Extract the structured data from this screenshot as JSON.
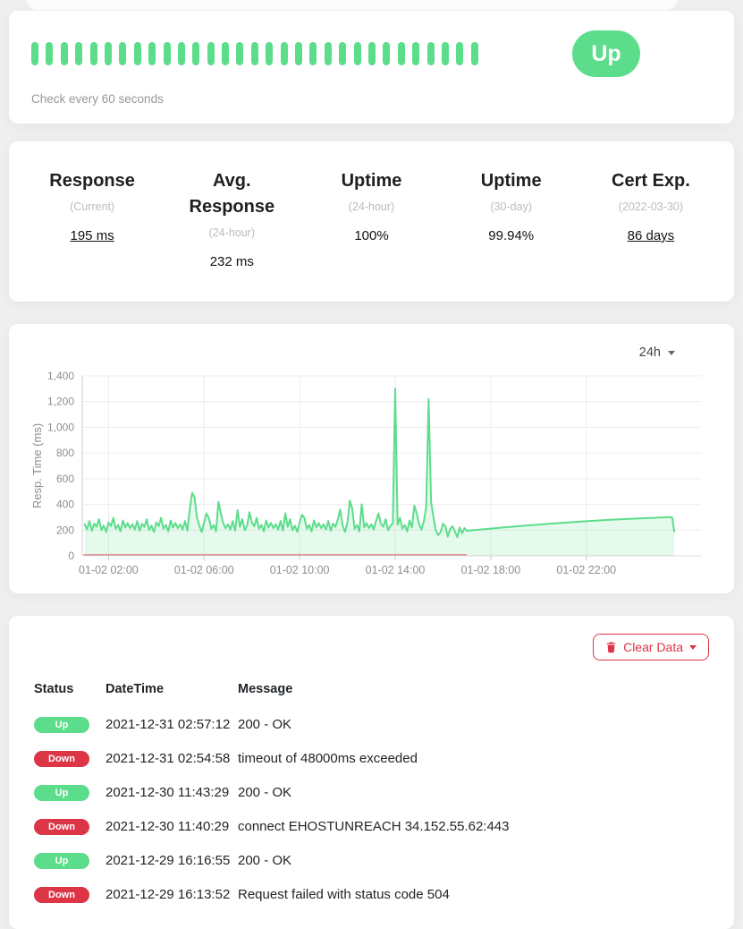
{
  "page": {
    "background": "#efefef"
  },
  "colors": {
    "green": "#5cdd8b",
    "red": "#dc3545"
  },
  "monitor": {
    "beats_count": 31,
    "beat_color": "#5cdd8b",
    "status_label": "Up",
    "check_text": "Check every 60 seconds"
  },
  "stats": [
    {
      "title": "Response",
      "subtitle": "(Current)",
      "value": "195 ms",
      "underlined": true
    },
    {
      "title": "Avg. Response",
      "subtitle": "(24-hour)",
      "value": "232 ms",
      "underlined": false
    },
    {
      "title": "Uptime",
      "subtitle": "(24-hour)",
      "value": "100%",
      "underlined": false
    },
    {
      "title": "Uptime",
      "subtitle": "(30-day)",
      "value": "99.94%",
      "underlined": false
    },
    {
      "title": "Cert Exp.",
      "subtitle": "(2022-03-30)",
      "value": "86 days",
      "underlined": true
    }
  ],
  "chart": {
    "period_label": "24h"
  },
  "chart_data": {
    "type": "area",
    "title": "",
    "xlabel": "",
    "ylabel": "Resp. Time (ms)",
    "ylim": [
      0,
      1400
    ],
    "ytick_step": 200,
    "x_range_hours": [
      0.9,
      26.8
    ],
    "grid": true,
    "legend": false,
    "xticks": [
      {
        "hour": 2,
        "label": "01-02 02:00"
      },
      {
        "hour": 6,
        "label": "01-02 06:00"
      },
      {
        "hour": 10,
        "label": "01-02 10:00"
      },
      {
        "hour": 14,
        "label": "01-02 14:00"
      },
      {
        "hour": 18,
        "label": "01-02 18:00"
      },
      {
        "hour": 22,
        "label": "01-02 22:00"
      }
    ],
    "series": [
      {
        "name": "Response Time (ms)",
        "color": "#5cdd8b",
        "fill": "rgba(92,221,139,0.16)",
        "noise": {
          "start_hour": 1.0,
          "step_hours": 0.1,
          "values": [
            245,
            205,
            270,
            195,
            250,
            225,
            285,
            200,
            235,
            185,
            260,
            230,
            295,
            210,
            240,
            190,
            275,
            220,
            255,
            215,
            245,
            205,
            270,
            195,
            250,
            225,
            285,
            200,
            235,
            185,
            260,
            230,
            295,
            210,
            240,
            190,
            275,
            220,
            255,
            215,
            245,
            205,
            270,
            195,
            360,
            490,
            455,
            300,
            235,
            185,
            260,
            330,
            295,
            210,
            240,
            190,
            420,
            330,
            255,
            215,
            245,
            205,
            270,
            195,
            355,
            225,
            285,
            200,
            235,
            340,
            260,
            230,
            295,
            210,
            240,
            190,
            275,
            220,
            255,
            215,
            245,
            205,
            270,
            195,
            330,
            225,
            285,
            200,
            235,
            185,
            260,
            320,
            295,
            210,
            240,
            190,
            275,
            220,
            255,
            215,
            245,
            205,
            270,
            195,
            250,
            225,
            285,
            360,
            235,
            185,
            260,
            430,
            370,
            210,
            240,
            190,
            400,
            220,
            255,
            215,
            245,
            205,
            270,
            330,
            250,
            225,
            285,
            200,
            235,
            250,
            1300,
            240,
            295,
            210,
            240,
            190,
            275,
            220,
            390,
            330,
            245,
            205,
            270,
            380,
            1220,
            420,
            300,
            200,
            160,
            185,
            250,
            230,
            150,
            210,
            230,
            190,
            145,
            220,
            175,
            215
          ]
        },
        "tail_points": [
          [
            17.0,
            195
          ],
          [
            18,
            212
          ],
          [
            19,
            228
          ],
          [
            20,
            243
          ],
          [
            21,
            257
          ],
          [
            22,
            269
          ],
          [
            23,
            280
          ],
          [
            24,
            289
          ],
          [
            25,
            297
          ],
          [
            25.5,
            301
          ],
          [
            25.6,
            298
          ],
          [
            25.68,
            190
          ]
        ]
      }
    ],
    "down_marker": {
      "from_hour": 0.95,
      "to_hour": 17.0,
      "value": 0,
      "color": "#dc3545"
    }
  },
  "events": {
    "clear_button_label": "Clear Data",
    "columns": {
      "status": "Status",
      "datetime": "DateTime",
      "message": "Message"
    },
    "rows": [
      {
        "status": "Up",
        "type": "up",
        "datetime": "2021-12-31 02:57:12",
        "message": "200 - OK"
      },
      {
        "status": "Down",
        "type": "down",
        "datetime": "2021-12-31 02:54:58",
        "message": "timeout of 48000ms exceeded"
      },
      {
        "status": "Up",
        "type": "up",
        "datetime": "2021-12-30 11:43:29",
        "message": "200 - OK"
      },
      {
        "status": "Down",
        "type": "down",
        "datetime": "2021-12-30 11:40:29",
        "message": "connect EHOSTUNREACH 34.152.55.62:443"
      },
      {
        "status": "Up",
        "type": "up",
        "datetime": "2021-12-29 16:16:55",
        "message": "200 - OK"
      },
      {
        "status": "Down",
        "type": "down",
        "datetime": "2021-12-29 16:13:52",
        "message": "Request failed with status code 504"
      }
    ]
  }
}
